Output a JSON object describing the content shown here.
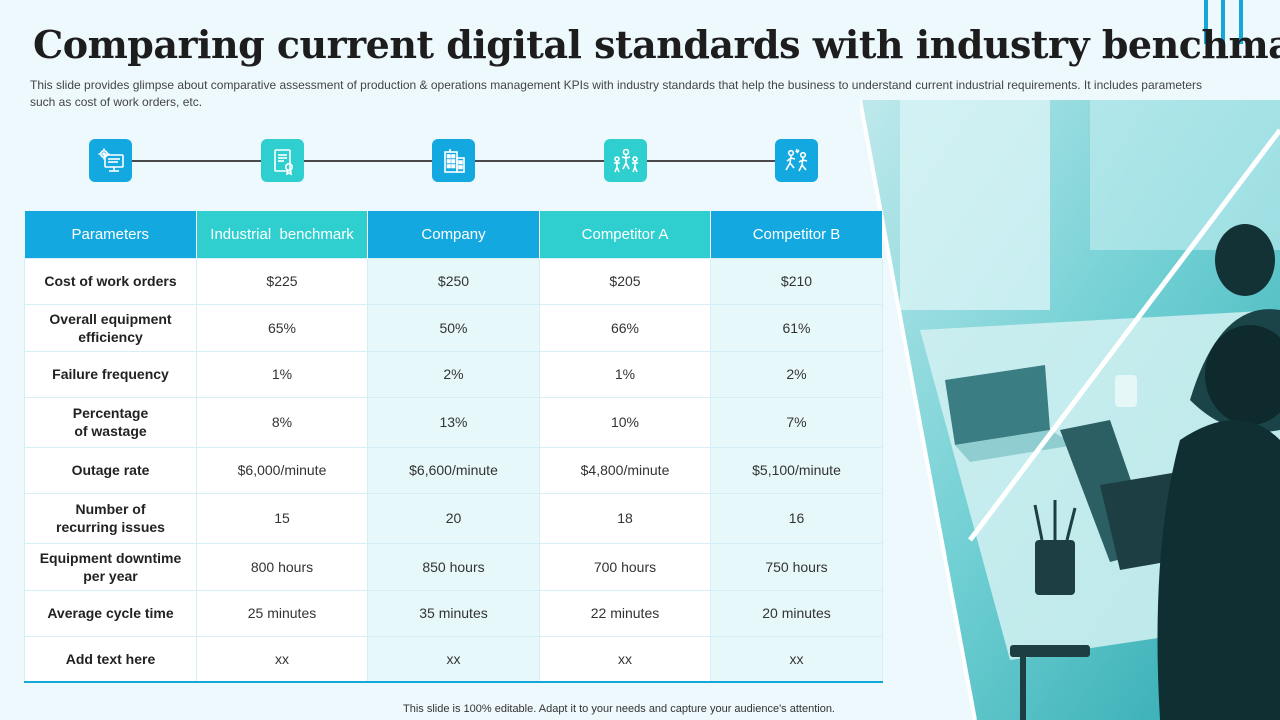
{
  "title": "Comparing current digital standards with industry benchmark",
  "subtitle": "This slide provides glimpse about comparative assessment of production & operations management KPIs with industry standards that help the business to understand current industrial requirements. It includes parameters such as cost of work orders, etc.",
  "icons": [
    {
      "name": "computer-gear-icon",
      "color": "#14a8e0"
    },
    {
      "name": "document-certificate-icon",
      "color": "#2fcfcf"
    },
    {
      "name": "building-icon",
      "color": "#14a8e0"
    },
    {
      "name": "team-celebrate-icon",
      "color": "#2fcfcf"
    },
    {
      "name": "people-running-icon",
      "color": "#14a8e0"
    }
  ],
  "table": {
    "headers": [
      "Parameters",
      "Industrial  benchmark",
      "Company",
      "Competitor A",
      "Competitor B"
    ],
    "rows": [
      [
        "Cost of work orders",
        "$225",
        "$250",
        "$205",
        "$210"
      ],
      [
        "Overall equipment\nefficiency",
        "65%",
        "50%",
        "66%",
        "61%"
      ],
      [
        "Failure frequency",
        "1%",
        "2%",
        "1%",
        "2%"
      ],
      [
        "Percentage\nof wastage",
        "8%",
        "13%",
        "10%",
        "7%"
      ],
      [
        "Outage rate",
        "$6,000/minute",
        "$6,600/minute",
        "$4,800/minute",
        "$5,100/minute"
      ],
      [
        "Number of\nrecurring issues",
        "15",
        "20",
        "18",
        "16"
      ],
      [
        "Equipment downtime\nper year",
        "800 hours",
        "850 hours",
        "700 hours",
        "750 hours"
      ],
      [
        "Average cycle time",
        "25 minutes",
        "35 minutes",
        "22 minutes",
        "20 minutes"
      ],
      [
        "Add  text here",
        "xx",
        "xx",
        "xx",
        "xx"
      ]
    ]
  },
  "footer": "This slide is 100% editable. Adapt it to your needs and capture your audience's attention.",
  "colors": {
    "accent_blue": "#14a8e0",
    "accent_teal": "#2fcfcf",
    "photo_tint": "#3fb9bf"
  }
}
